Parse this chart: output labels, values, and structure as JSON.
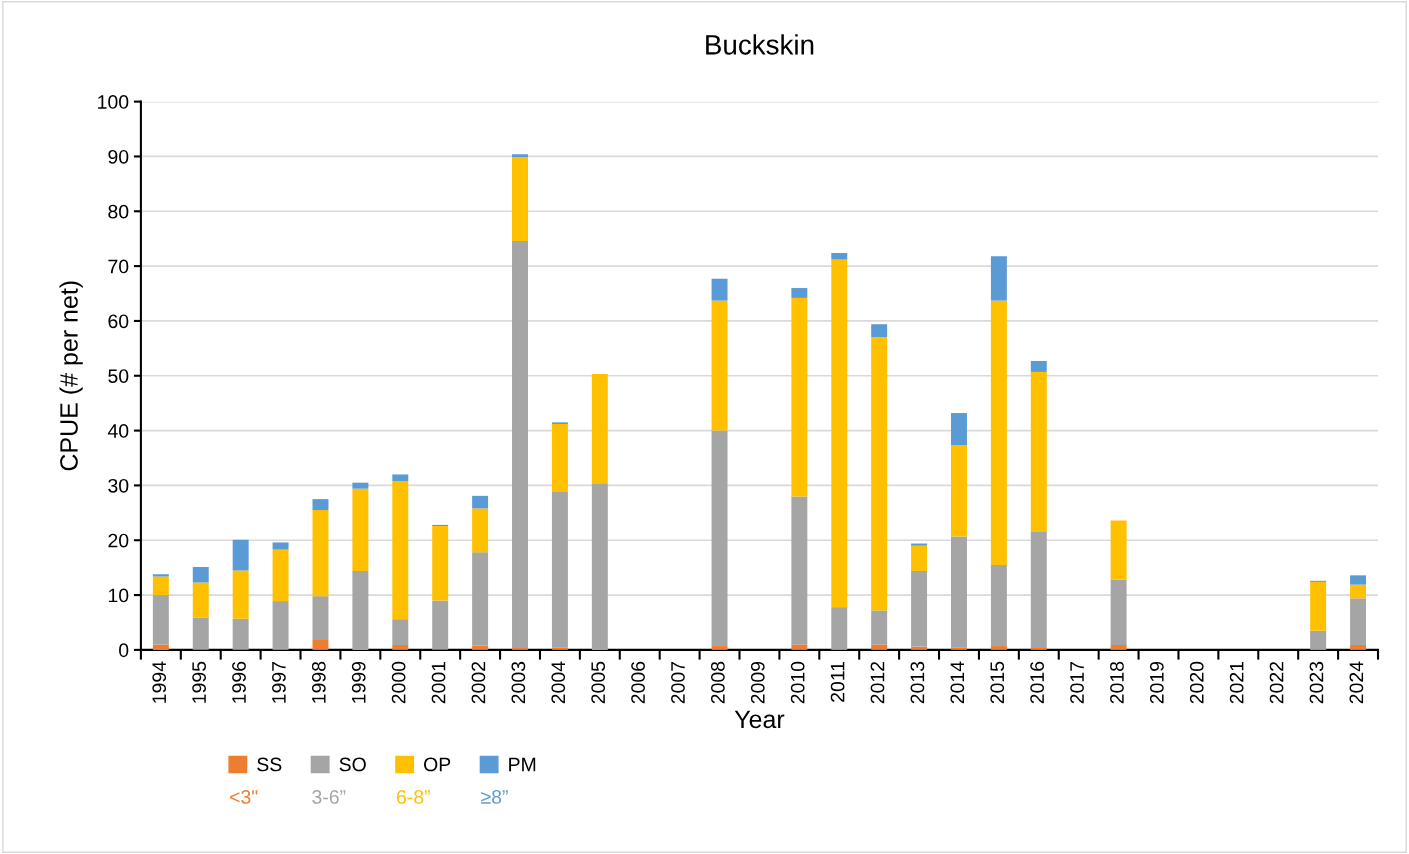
{
  "chart_data": {
    "type": "bar",
    "title": "Buckskin",
    "xlabel": "Year",
    "ylabel": "CPUE (# per net)",
    "categories": [
      "1994",
      "1995",
      "1996",
      "1997",
      "1998",
      "1999",
      "2000",
      "2001",
      "2002",
      "2003",
      "2004",
      "2005",
      "2006",
      "2007",
      "2008",
      "2009",
      "2010",
      "2011",
      "2012",
      "2013",
      "2014",
      "2015",
      "2016",
      "2017",
      "2018",
      "2019",
      "2020",
      "2021",
      "2022",
      "2023",
      "2024"
    ],
    "stacked": true,
    "series": [
      {
        "name": "SS",
        "color": "#ed7d31",
        "values": [
          1.0,
          0.1,
          0.1,
          0.2,
          1.8,
          0,
          0.9,
          0.1,
          0.8,
          0.5,
          0.4,
          0,
          null,
          null,
          0.7,
          null,
          1.0,
          0,
          1.0,
          0.6,
          0.4,
          0.7,
          0.5,
          null,
          0.9,
          null,
          null,
          null,
          null,
          0,
          0.9
        ]
      },
      {
        "name": "SO",
        "color": "#a5a5a5",
        "values": [
          9.0,
          5.8,
          5.6,
          8.7,
          8.0,
          14.4,
          4.7,
          8.9,
          17.0,
          74.1,
          28.4,
          30.4,
          null,
          null,
          39.3,
          null,
          27.0,
          7.8,
          6.2,
          13.8,
          20.3,
          14.8,
          21.0,
          null,
          11.9,
          null,
          null,
          null,
          null,
          3.5,
          8.5
        ]
      },
      {
        "name": "OP",
        "color": "#ffc000",
        "values": [
          3.4,
          6.4,
          8.8,
          9.4,
          15.7,
          15.0,
          25.2,
          13.6,
          8.0,
          15.3,
          12.4,
          19.9,
          null,
          null,
          23.7,
          null,
          36.2,
          63.4,
          49.8,
          4.6,
          16.6,
          48.2,
          29.2,
          null,
          10.8,
          null,
          null,
          null,
          null,
          8.9,
          2.5
        ]
      },
      {
        "name": "PM",
        "color": "#5b9bd5",
        "values": [
          0.4,
          2.8,
          5.6,
          1.3,
          2.0,
          1.1,
          1.2,
          0.2,
          2.3,
          0.5,
          0.3,
          0,
          null,
          null,
          4.0,
          null,
          1.8,
          1.2,
          2.4,
          0.4,
          5.9,
          8.1,
          2.0,
          null,
          0,
          null,
          null,
          null,
          null,
          0.2,
          1.7
        ]
      }
    ],
    "annotations": [
      "<3\"",
      "3-6”",
      "6-8”",
      "≥8”"
    ],
    "ylim": [
      0,
      100
    ],
    "yticks": [
      0,
      10,
      20,
      30,
      40,
      50,
      60,
      70,
      80,
      90,
      100
    ],
    "grid": "y",
    "legend": "bottom left"
  }
}
